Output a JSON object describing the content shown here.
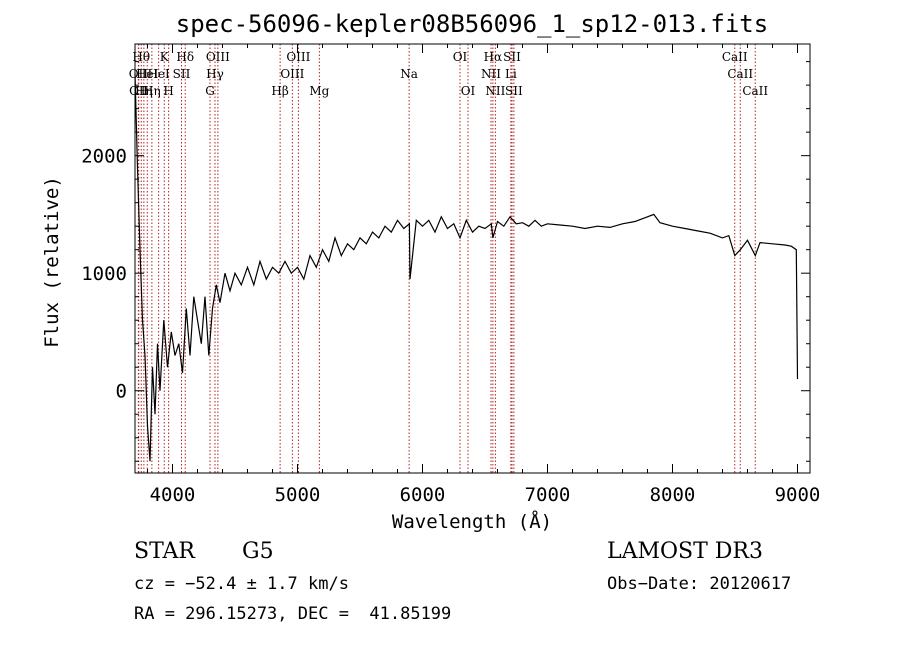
{
  "chart_data": {
    "type": "line",
    "title": "spec-56096-kepler08B56096_1_sp12-013.fits",
    "xlabel": "Wavelength (Å)",
    "ylabel": "Flux (relative)",
    "xlim": [
      3700,
      9100
    ],
    "ylim": [
      -700,
      2950
    ],
    "x_ticks": [
      4000,
      5000,
      6000,
      7000,
      8000,
      9000
    ],
    "y_ticks": [
      0,
      1000,
      2000
    ],
    "line_color": "#000000",
    "marker_color": "#b22222",
    "spectrum": {
      "name": "flux",
      "x": [
        3700,
        3720,
        3740,
        3760,
        3780,
        3800,
        3820,
        3840,
        3860,
        3880,
        3900,
        3930,
        3960,
        3990,
        4020,
        4050,
        4080,
        4110,
        4140,
        4170,
        4200,
        4230,
        4260,
        4290,
        4320,
        4350,
        4380,
        4420,
        4460,
        4500,
        4550,
        4600,
        4650,
        4700,
        4750,
        4800,
        4850,
        4900,
        4950,
        5000,
        5050,
        5100,
        5150,
        5200,
        5250,
        5300,
        5350,
        5400,
        5450,
        5500,
        5550,
        5600,
        5650,
        5700,
        5750,
        5800,
        5850,
        5895,
        5900,
        5950,
        6000,
        6050,
        6100,
        6150,
        6200,
        6250,
        6300,
        6350,
        6400,
        6450,
        6500,
        6550,
        6563,
        6600,
        6650,
        6700,
        6750,
        6800,
        6850,
        6900,
        6950,
        7000,
        7100,
        7200,
        7300,
        7400,
        7500,
        7600,
        7700,
        7800,
        7850,
        7900,
        8000,
        8100,
        8200,
        8300,
        8400,
        8450,
        8498,
        8542,
        8600,
        8662,
        8700,
        8800,
        8900,
        8950,
        8990,
        9000
      ],
      "y": [
        2700,
        1900,
        1200,
        600,
        300,
        -300,
        -600,
        200,
        -200,
        400,
        0,
        600,
        200,
        500,
        300,
        400,
        150,
        700,
        300,
        800,
        600,
        400,
        800,
        300,
        700,
        900,
        750,
        1000,
        850,
        1000,
        900,
        1050,
        900,
        1100,
        950,
        1050,
        1000,
        1100,
        1000,
        1050,
        950,
        1150,
        1050,
        1200,
        1100,
        1300,
        1150,
        1250,
        1200,
        1300,
        1250,
        1350,
        1300,
        1400,
        1350,
        1450,
        1380,
        1420,
        950,
        1450,
        1400,
        1450,
        1350,
        1480,
        1380,
        1420,
        1300,
        1450,
        1350,
        1400,
        1380,
        1420,
        1300,
        1440,
        1400,
        1480,
        1420,
        1430,
        1400,
        1450,
        1400,
        1420,
        1410,
        1400,
        1380,
        1400,
        1390,
        1420,
        1440,
        1480,
        1500,
        1430,
        1400,
        1380,
        1360,
        1340,
        1300,
        1320,
        1150,
        1200,
        1280,
        1150,
        1260,
        1250,
        1240,
        1230,
        1200,
        100
      ]
    },
    "line_markers": [
      {
        "wl": 3727,
        "label": "OII",
        "row": 2
      },
      {
        "wl": 3730,
        "label": "OII",
        "row": 3
      },
      {
        "wl": 3750,
        "label": "Hθ",
        "row": 1
      },
      {
        "wl": 3771,
        "label": "Hη",
        "row": 3
      },
      {
        "wl": 3798,
        "label": "HeI",
        "row": 2
      },
      {
        "wl": 3835,
        "label": "Hη",
        "row": 3
      },
      {
        "wl": 3889,
        "label": "HeI",
        "row": 2
      },
      {
        "wl": 3934,
        "label": "K",
        "row": 1
      },
      {
        "wl": 3969,
        "label": "H",
        "row": 3
      },
      {
        "wl": 4072,
        "label": "SII",
        "row": 2
      },
      {
        "wl": 4102,
        "label": "Hδ",
        "row": 1
      },
      {
        "wl": 4300,
        "label": "G",
        "row": 3
      },
      {
        "wl": 4340,
        "label": "Hγ",
        "row": 2
      },
      {
        "wl": 4363,
        "label": "OIII",
        "row": 1
      },
      {
        "wl": 4861,
        "label": "Hβ",
        "row": 3
      },
      {
        "wl": 4959,
        "label": "OIII",
        "row": 2
      },
      {
        "wl": 5007,
        "label": "OIII",
        "row": 1
      },
      {
        "wl": 5175,
        "label": "Mg",
        "row": 3
      },
      {
        "wl": 5893,
        "label": "Na",
        "row": 2
      },
      {
        "wl": 6300,
        "label": "OI",
        "row": 1
      },
      {
        "wl": 6364,
        "label": "OI",
        "row": 3
      },
      {
        "wl": 6548,
        "label": "NII",
        "row": 2
      },
      {
        "wl": 6563,
        "label": "Hα",
        "row": 1
      },
      {
        "wl": 6583,
        "label": "NII",
        "row": 3
      },
      {
        "wl": 6707,
        "label": "Li",
        "row": 2
      },
      {
        "wl": 6716,
        "label": "SII",
        "row": 1
      },
      {
        "wl": 6731,
        "label": "SII",
        "row": 3
      },
      {
        "wl": 8498,
        "label": "CaII",
        "row": 1
      },
      {
        "wl": 8542,
        "label": "CaII",
        "row": 2
      },
      {
        "wl": 8662,
        "label": "CaII",
        "row": 3
      }
    ]
  },
  "footer": {
    "class_label": "STAR",
    "subclass": "G5",
    "survey": "LAMOST DR3",
    "cz": "cz = −52.4 ± 1.7 km/s",
    "obs_date": "Obs−Date: 20120617",
    "coords": "RA = 296.15273, DEC =  41.85199"
  }
}
